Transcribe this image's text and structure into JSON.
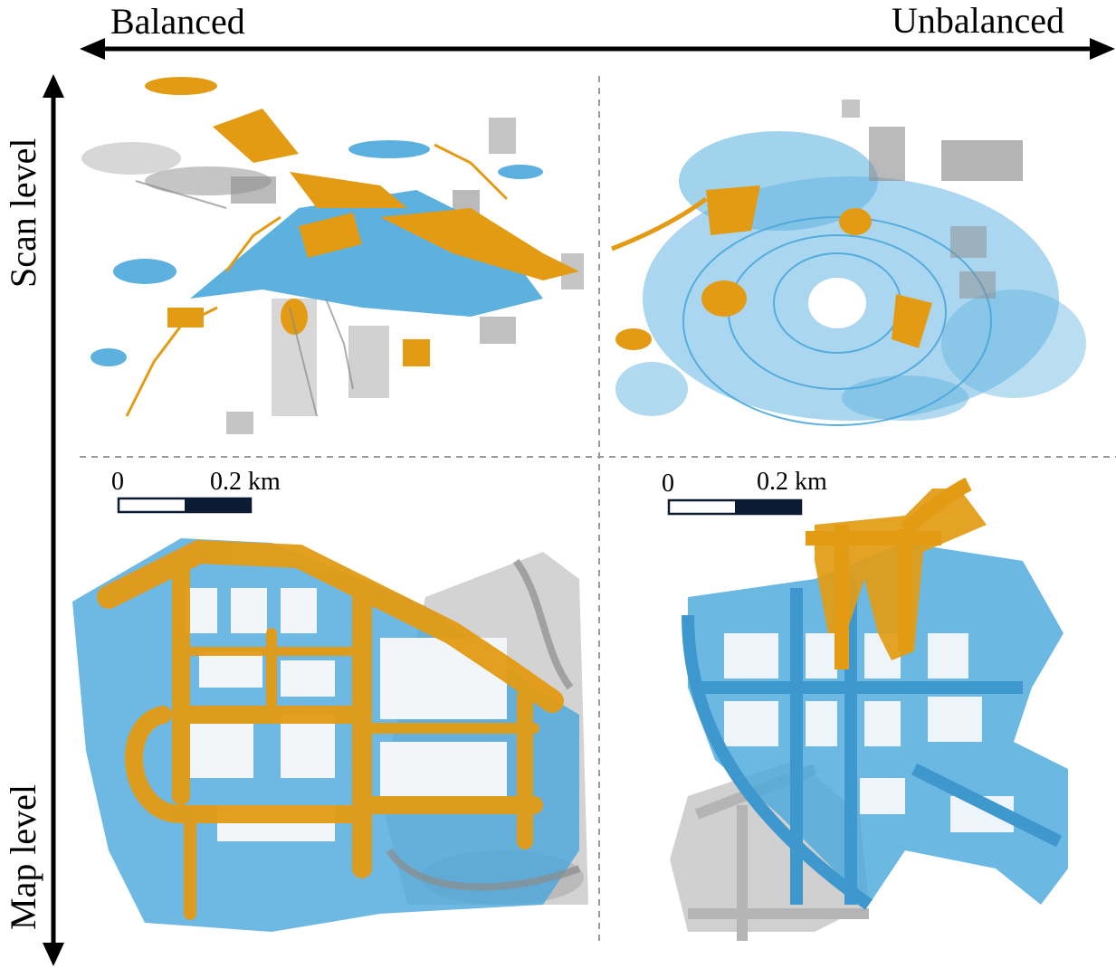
{
  "axes": {
    "horizontal": {
      "left_label": "Balanced",
      "right_label": "Unbalanced"
    },
    "vertical": {
      "top_label": "Scan level",
      "bottom_label": "Map level"
    }
  },
  "scale_bars": [
    {
      "start": "0",
      "end": "0.2 km"
    },
    {
      "start": "0",
      "end": "0.2 km"
    }
  ],
  "colors": {
    "orange": "#E39B14",
    "blue": "#4AA8DC",
    "gray": "#8C8C8C",
    "light_gray": "#C8C8C8",
    "divider": "#9a9a9a",
    "scale_dark": "#0d1a33"
  }
}
